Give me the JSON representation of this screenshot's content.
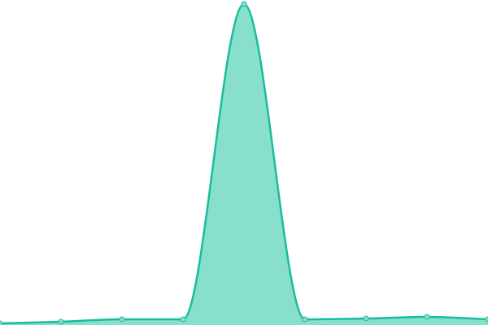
{
  "chart_data": {
    "type": "area",
    "values": [
      0.5,
      1,
      1.75,
      1.75,
      98.75,
      1.75,
      2,
      2.5,
      1.75
    ],
    "ylim": [
      0,
      100
    ],
    "color": "#1abc9c",
    "fill": "#88e0cc",
    "smooth": true,
    "markers": true
  }
}
